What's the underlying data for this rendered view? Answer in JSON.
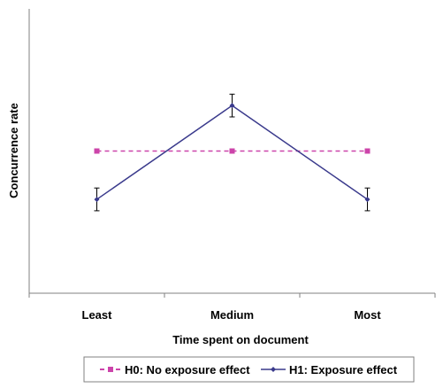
{
  "chart_data": {
    "type": "line",
    "title": "",
    "xlabel": "Time spent on document",
    "ylabel": "Concurrence rate",
    "categories": [
      "Least",
      "Medium",
      "Most"
    ],
    "ylim": [
      0,
      100
    ],
    "grid": false,
    "legend_position": "bottom",
    "series": [
      {
        "name": "H0: No exposure effect",
        "values": [
          50,
          50,
          50
        ],
        "color": "#cc44aa",
        "dashed": true,
        "marker": "square"
      },
      {
        "name": "H1: Exposure effect",
        "values": [
          33,
          66,
          33
        ],
        "errors": [
          4,
          4,
          4
        ],
        "color": "#3a3a8c",
        "dashed": false,
        "marker": "diamond"
      }
    ]
  }
}
